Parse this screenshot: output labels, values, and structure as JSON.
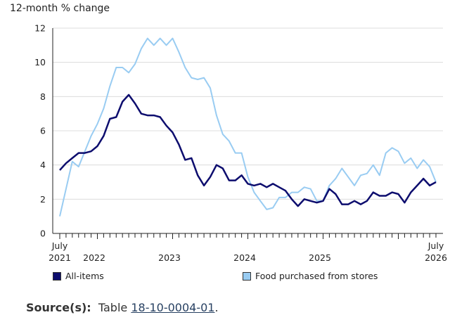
{
  "chart_data": {
    "type": "line",
    "y_title": "12-month % change",
    "ylim": [
      0,
      12
    ],
    "y_ticks": [
      "0",
      "2",
      "4",
      "6",
      "8",
      "10",
      "12"
    ],
    "x_start": "July 2021",
    "x_end": "July 2026",
    "x_tick_labels": [
      {
        "line1": "July",
        "line2": "2021"
      },
      {
        "line1": "",
        "line2": "2022"
      },
      {
        "line1": "",
        "line2": "2023"
      },
      {
        "line1": "",
        "line2": "2024"
      },
      {
        "line1": "",
        "line2": "2025"
      },
      {
        "line1": "July",
        "line2": "2026"
      }
    ],
    "grid": "horizontal",
    "legend_position": "bottom",
    "series": [
      {
        "name": "All-items",
        "color": "#0d0d6e",
        "values": [
          3.7,
          4.1,
          4.4,
          4.7,
          4.7,
          4.8,
          5.1,
          5.7,
          6.7,
          6.8,
          7.7,
          8.1,
          7.6,
          7.0,
          6.9,
          6.9,
          6.8,
          6.3,
          5.9,
          5.2,
          4.3,
          4.4,
          3.4,
          2.8,
          3.3,
          4.0,
          3.8,
          3.1,
          3.1,
          3.4,
          2.9,
          2.8,
          2.9,
          2.7,
          2.9,
          2.7,
          2.5,
          2.0,
          1.6,
          2.0,
          1.9,
          1.8,
          1.9,
          2.6,
          2.3,
          1.7,
          1.7,
          1.9,
          1.7,
          1.9,
          2.4,
          2.2,
          2.2,
          2.4,
          2.3,
          1.8,
          2.4,
          2.8,
          3.2,
          2.8,
          3.0
        ]
      },
      {
        "name": "Food purchased from stores",
        "color": "#99ccf2",
        "values": [
          1.0,
          2.6,
          4.2,
          3.9,
          4.8,
          5.7,
          6.4,
          7.3,
          8.6,
          9.7,
          9.7,
          9.4,
          9.9,
          10.8,
          11.4,
          11.0,
          11.4,
          11.0,
          11.4,
          10.6,
          9.7,
          9.1,
          9.0,
          9.1,
          8.5,
          6.9,
          5.8,
          5.4,
          4.7,
          4.7,
          3.3,
          2.4,
          1.9,
          1.4,
          1.5,
          2.1,
          2.1,
          2.4,
          2.4,
          2.7,
          2.6,
          1.9,
          1.9,
          2.8,
          3.2,
          3.8,
          3.3,
          2.8,
          3.4,
          3.5,
          4.0,
          3.4,
          4.7,
          5.0,
          4.8,
          4.1,
          4.4,
          3.8,
          4.3,
          3.9,
          3.0
        ]
      }
    ]
  },
  "source": {
    "label": "Source(s):",
    "text": "Table",
    "link": "18-10-0004-01",
    "end": "."
  }
}
